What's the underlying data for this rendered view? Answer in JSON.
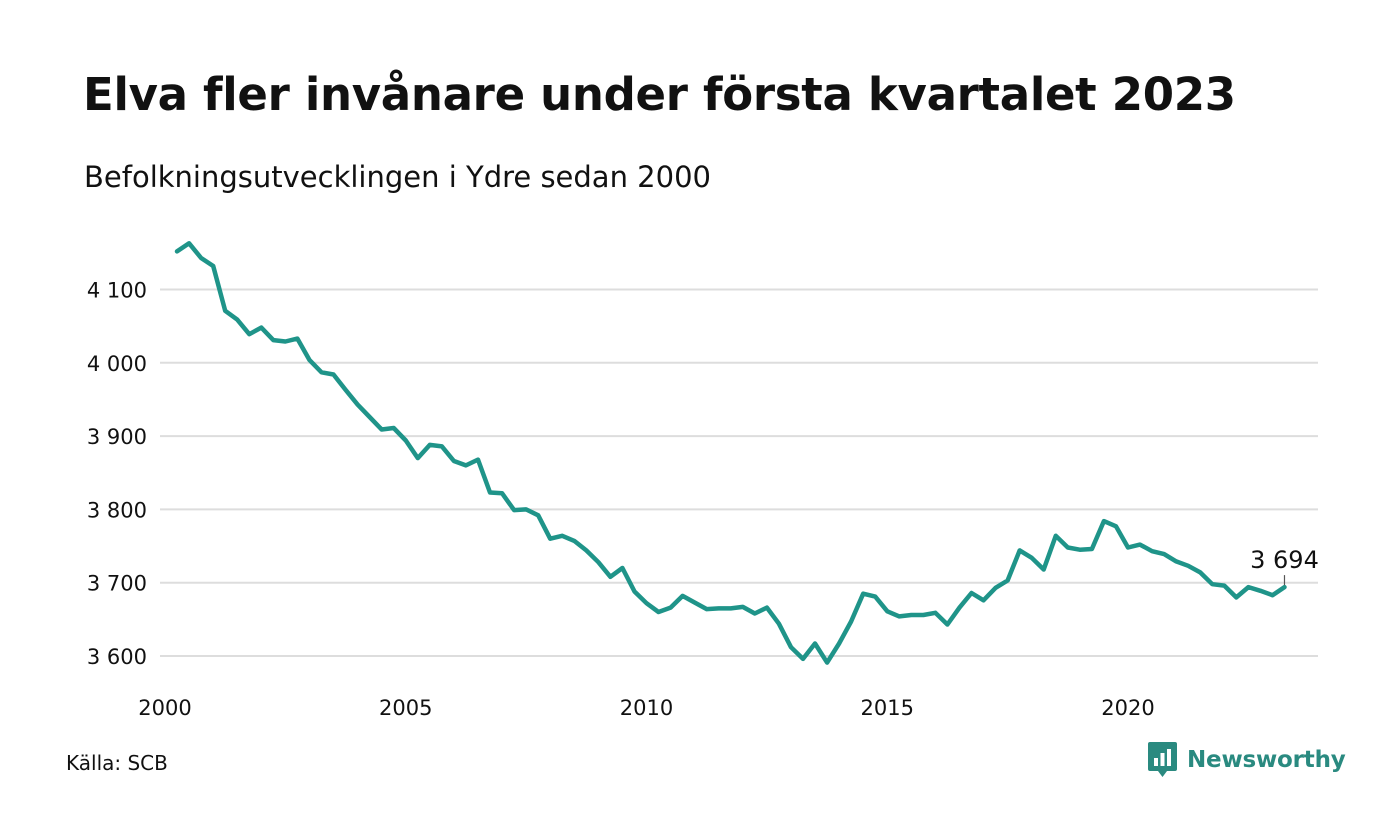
{
  "title": "Elva fler invånare under första kvartalet 2023",
  "subtitle": "Befolkningsutvecklingen i Ydre sedan 2000",
  "source": "Källa: SCB",
  "brand": {
    "name": "Newsworthy",
    "logo_icon": "newsworthy-logo-icon"
  },
  "colors": {
    "line": "#1f9489",
    "grid": "#dddddd",
    "brand": "#2a8a80",
    "text": "#111111"
  },
  "chart_data": {
    "type": "line",
    "title": "Elva fler invånare under första kvartalet 2023",
    "subtitle": "Befolkningsutvecklingen i Ydre sedan 2000",
    "xlabel": "",
    "ylabel": "",
    "xlim": [
      2000,
      2024
    ],
    "ylim": [
      3575,
      4175
    ],
    "x_ticks": [
      2000,
      2005,
      2010,
      2015,
      2020
    ],
    "x_tick_labels": [
      "2000",
      "2005",
      "2010",
      "2015",
      "2020"
    ],
    "y_ticks": [
      3600,
      3700,
      3800,
      3900,
      4000,
      4100
    ],
    "y_tick_labels": [
      "3 600",
      "3 700",
      "3 800",
      "3 900",
      "4 000",
      "4 100"
    ],
    "grid": "horizontal",
    "legend": "none",
    "end_label": "3 694",
    "series": [
      {
        "x": [
          2000.25,
          2000.5,
          2000.75,
          2001,
          2001.25,
          2001.5,
          2001.75,
          2002,
          2002.25,
          2002.5,
          2002.75,
          2003,
          2003.25,
          2003.5,
          2003.75,
          2004,
          2004.25,
          2004.5,
          2004.75,
          2005,
          2005.25,
          2005.5,
          2005.75,
          2006,
          2006.25,
          2006.5,
          2006.75,
          2007,
          2007.25,
          2007.5,
          2007.75,
          2008,
          2008.25,
          2008.5,
          2008.75,
          2009,
          2009.25,
          2009.5,
          2009.75,
          2010,
          2010.25,
          2010.5,
          2010.75,
          2011,
          2011.25,
          2011.5,
          2011.75,
          2012,
          2012.25,
          2012.5,
          2012.75,
          2013,
          2013.25,
          2013.5,
          2013.75,
          2014,
          2014.25,
          2014.5,
          2014.75,
          2015,
          2015.25,
          2015.5,
          2015.75,
          2016,
          2016.25,
          2016.5,
          2016.75,
          2017,
          2017.25,
          2017.5,
          2017.75,
          2018,
          2018.25,
          2018.5,
          2018.75,
          2019,
          2019.25,
          2019.5,
          2019.75,
          2020,
          2020.25,
          2020.5,
          2020.75,
          2021,
          2021.25,
          2021.5,
          2021.75,
          2022,
          2022.25,
          2022.5,
          2022.75,
          2023,
          2023.25
        ],
        "values": [
          4152,
          4163,
          4143,
          4132,
          4071,
          4059,
          4039,
          4048,
          4031,
          4029,
          4033,
          4004,
          3987,
          3984,
          3963,
          3943,
          3926,
          3909,
          3911,
          3894,
          3870,
          3888,
          3886,
          3866,
          3860,
          3868,
          3823,
          3822,
          3799,
          3800,
          3792,
          3760,
          3764,
          3757,
          3744,
          3728,
          3708,
          3720,
          3688,
          3672,
          3660,
          3666,
          3682,
          3673,
          3664,
          3665,
          3665,
          3667,
          3658,
          3666,
          3644,
          3612,
          3596,
          3617,
          3591,
          3617,
          3647,
          3685,
          3681,
          3661,
          3654,
          3656,
          3656,
          3659,
          3643,
          3666,
          3686,
          3676,
          3693,
          3703,
          3744,
          3734,
          3718,
          3764,
          3748,
          3745,
          3746,
          3784,
          3777,
          3748,
          3752,
          3743,
          3739,
          3729,
          3723,
          3714,
          3698,
          3696,
          3680,
          3694,
          3689,
          3683,
          3694
        ]
      }
    ]
  }
}
